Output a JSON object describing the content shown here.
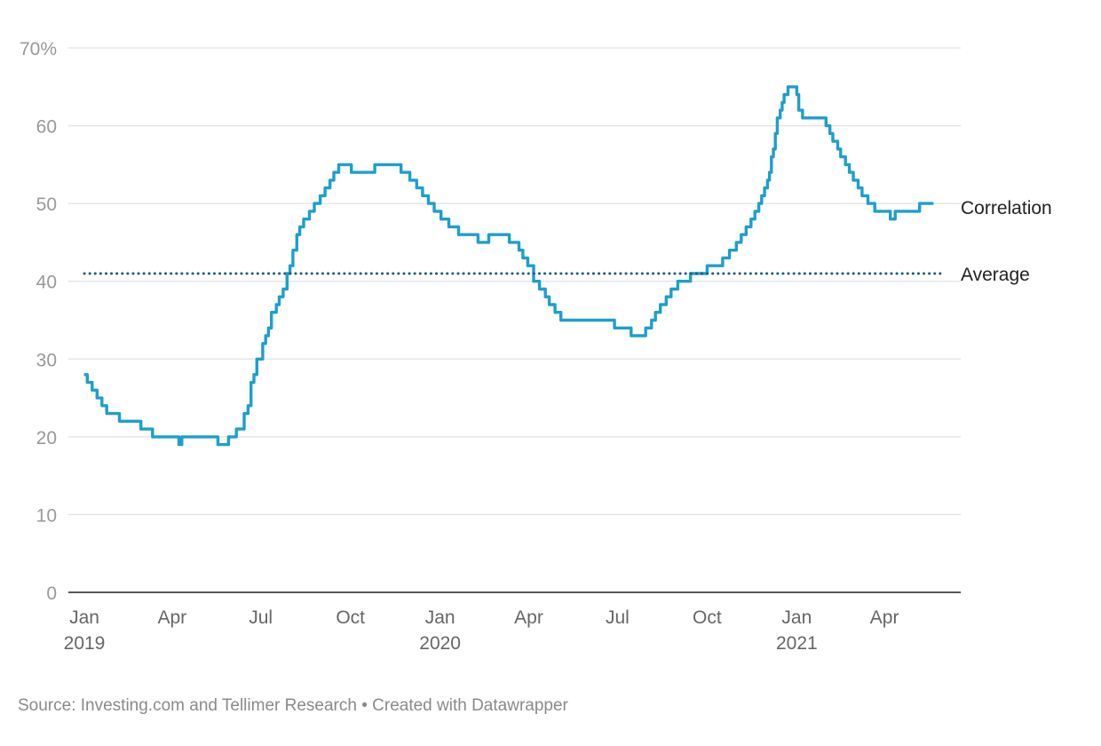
{
  "chart_data": {
    "type": "line",
    "y_unit": "%",
    "ylim": [
      0,
      70
    ],
    "y_ticks": [
      0,
      10,
      20,
      30,
      40,
      50,
      60,
      70
    ],
    "y_tick_labels": [
      "0",
      "10",
      "20",
      "30",
      "40",
      "50",
      "60",
      "70%"
    ],
    "x_range": [
      "2019-01-01",
      "2021-05-31"
    ],
    "x_ticks": [
      {
        "date": "2019-01-01",
        "label": "Jan",
        "sub": "2019"
      },
      {
        "date": "2019-04-01",
        "label": "Apr",
        "sub": ""
      },
      {
        "date": "2019-07-01",
        "label": "Jul",
        "sub": ""
      },
      {
        "date": "2019-10-01",
        "label": "Oct",
        "sub": ""
      },
      {
        "date": "2020-01-01",
        "label": "Jan",
        "sub": "2020"
      },
      {
        "date": "2020-04-01",
        "label": "Apr",
        "sub": ""
      },
      {
        "date": "2020-07-01",
        "label": "Jul",
        "sub": ""
      },
      {
        "date": "2020-10-01",
        "label": "Oct",
        "sub": ""
      },
      {
        "date": "2021-01-01",
        "label": "Jan",
        "sub": "2021"
      },
      {
        "date": "2021-04-01",
        "label": "Apr",
        "sub": ""
      }
    ],
    "grid": true,
    "series": [
      {
        "name": "Correlation",
        "color": "#1d9fcd",
        "style": "solid",
        "points": [
          [
            "2019-01-02",
            28
          ],
          [
            "2019-01-04",
            27
          ],
          [
            "2019-01-09",
            26
          ],
          [
            "2019-01-14",
            25
          ],
          [
            "2019-01-19",
            24
          ],
          [
            "2019-01-24",
            23
          ],
          [
            "2019-02-06",
            22
          ],
          [
            "2019-02-28",
            21
          ],
          [
            "2019-03-12",
            20
          ],
          [
            "2019-04-08",
            19
          ],
          [
            "2019-04-11",
            20
          ],
          [
            "2019-05-18",
            19
          ],
          [
            "2019-05-29",
            20
          ],
          [
            "2019-06-06",
            21
          ],
          [
            "2019-06-14",
            23
          ],
          [
            "2019-06-18",
            24
          ],
          [
            "2019-06-21",
            27
          ],
          [
            "2019-06-24",
            28
          ],
          [
            "2019-06-27",
            30
          ],
          [
            "2019-07-03",
            32
          ],
          [
            "2019-07-06",
            33
          ],
          [
            "2019-07-09",
            34
          ],
          [
            "2019-07-12",
            36
          ],
          [
            "2019-07-17",
            37
          ],
          [
            "2019-07-20",
            38
          ],
          [
            "2019-07-24",
            39
          ],
          [
            "2019-07-28",
            41
          ],
          [
            "2019-07-31",
            42
          ],
          [
            "2019-08-03",
            44
          ],
          [
            "2019-08-07",
            46
          ],
          [
            "2019-08-10",
            47
          ],
          [
            "2019-08-14",
            48
          ],
          [
            "2019-08-20",
            49
          ],
          [
            "2019-08-25",
            50
          ],
          [
            "2019-08-31",
            51
          ],
          [
            "2019-09-05",
            52
          ],
          [
            "2019-09-10",
            53
          ],
          [
            "2019-09-14",
            54
          ],
          [
            "2019-09-19",
            55
          ],
          [
            "2019-10-02",
            54
          ],
          [
            "2019-10-26",
            55
          ],
          [
            "2019-11-22",
            54
          ],
          [
            "2019-12-01",
            53
          ],
          [
            "2019-12-08",
            52
          ],
          [
            "2019-12-14",
            51
          ],
          [
            "2019-12-20",
            50
          ],
          [
            "2019-12-26",
            49
          ],
          [
            "2020-01-02",
            48
          ],
          [
            "2020-01-10",
            47
          ],
          [
            "2020-01-20",
            46
          ],
          [
            "2020-02-09",
            45
          ],
          [
            "2020-02-20",
            46
          ],
          [
            "2020-03-12",
            45
          ],
          [
            "2020-03-22",
            44
          ],
          [
            "2020-03-26",
            43
          ],
          [
            "2020-03-31",
            42
          ],
          [
            "2020-04-06",
            40
          ],
          [
            "2020-04-12",
            39
          ],
          [
            "2020-04-18",
            38
          ],
          [
            "2020-04-22",
            37
          ],
          [
            "2020-04-28",
            36
          ],
          [
            "2020-05-04",
            35
          ],
          [
            "2020-06-28",
            34
          ],
          [
            "2020-07-15",
            33
          ],
          [
            "2020-07-30",
            34
          ],
          [
            "2020-08-05",
            35
          ],
          [
            "2020-08-09",
            36
          ],
          [
            "2020-08-14",
            37
          ],
          [
            "2020-08-20",
            38
          ],
          [
            "2020-08-25",
            39
          ],
          [
            "2020-09-01",
            40
          ],
          [
            "2020-09-14",
            41
          ],
          [
            "2020-10-01",
            42
          ],
          [
            "2020-10-17",
            43
          ],
          [
            "2020-10-24",
            44
          ],
          [
            "2020-10-31",
            45
          ],
          [
            "2020-11-05",
            46
          ],
          [
            "2020-11-10",
            47
          ],
          [
            "2020-11-15",
            48
          ],
          [
            "2020-11-19",
            49
          ],
          [
            "2020-11-23",
            50
          ],
          [
            "2020-11-26",
            51
          ],
          [
            "2020-11-29",
            52
          ],
          [
            "2020-12-02",
            53
          ],
          [
            "2020-12-04",
            54
          ],
          [
            "2020-12-06",
            56
          ],
          [
            "2020-12-08",
            57
          ],
          [
            "2020-12-10",
            59
          ],
          [
            "2020-12-12",
            61
          ],
          [
            "2020-12-15",
            62
          ],
          [
            "2020-12-17",
            63
          ],
          [
            "2020-12-19",
            64
          ],
          [
            "2020-12-23",
            65
          ],
          [
            "2021-01-01",
            64
          ],
          [
            "2021-01-03",
            62
          ],
          [
            "2021-01-07",
            61
          ],
          [
            "2021-01-31",
            60
          ],
          [
            "2021-02-04",
            59
          ],
          [
            "2021-02-07",
            58
          ],
          [
            "2021-02-12",
            57
          ],
          [
            "2021-02-15",
            56
          ],
          [
            "2021-02-20",
            55
          ],
          [
            "2021-02-24",
            54
          ],
          [
            "2021-02-28",
            53
          ],
          [
            "2021-03-05",
            52
          ],
          [
            "2021-03-09",
            51
          ],
          [
            "2021-03-15",
            50
          ],
          [
            "2021-03-22",
            49
          ],
          [
            "2021-04-07",
            48
          ],
          [
            "2021-04-12",
            49
          ],
          [
            "2021-05-07",
            50
          ],
          [
            "2021-05-20",
            50
          ]
        ]
      },
      {
        "name": "Average",
        "color": "#1b5e84",
        "style": "dotted",
        "value": 41
      }
    ]
  },
  "footer": {
    "source": "Source: Investing.com and Tellimer Research • Created with Datawrapper"
  }
}
